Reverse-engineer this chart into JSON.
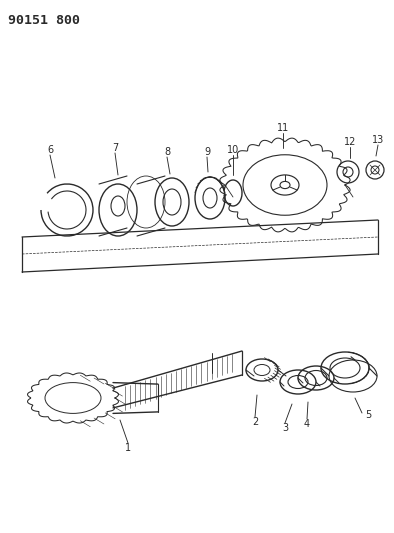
{
  "title": "90151 800",
  "bg_color": "#ffffff",
  "line_color": "#2a2a2a",
  "label_fontsize": 7.0,
  "title_fontsize": 9.5
}
